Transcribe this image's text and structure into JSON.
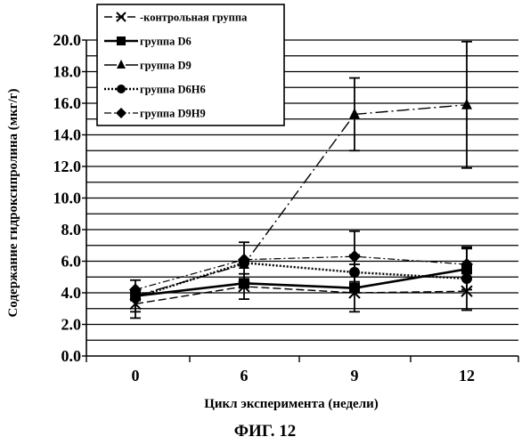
{
  "caption": "ФИГ. 12",
  "chart_data": {
    "type": "line",
    "xlabel": "Цикл эксперимента (недели)",
    "ylabel": "Содержание гидроксипролина (мкг/г)",
    "x": [
      0,
      6,
      9,
      12
    ],
    "x_tick_labels": [
      "0",
      "6",
      "9",
      "12"
    ],
    "ylim": [
      0,
      20
    ],
    "y_ticks": [
      0,
      2,
      4,
      6,
      8,
      10,
      12,
      14,
      16,
      18,
      20
    ],
    "y_tick_labels": [
      "0.0",
      "2.0",
      "4.0",
      "6.0",
      "8.0",
      "10.0",
      "12.0",
      "14.0",
      "16.0",
      "18.0",
      "20.0"
    ],
    "grid": true,
    "legend_position": "top-left",
    "series": [
      {
        "name": "-контрольная группа",
        "marker": "x",
        "line_style": "dashed",
        "values": [
          3.3,
          4.4,
          4.0,
          4.1
        ],
        "error": [
          0.9,
          0.8,
          0.0,
          0.0
        ]
      },
      {
        "name": "группа D6",
        "marker": "square",
        "line_style": "solid",
        "values": [
          3.8,
          4.6,
          4.3,
          5.5
        ],
        "error": [
          1.0,
          0.0,
          1.5,
          1.3
        ]
      },
      {
        "name": "группа D9",
        "marker": "triangle",
        "line_style": "dash-dot",
        "values": [
          3.8,
          5.8,
          15.3,
          15.9
        ],
        "error": [
          0.0,
          1.4,
          2.3,
          4.0
        ]
      },
      {
        "name": "группа D6H6",
        "marker": "circle",
        "line_style": "dotted",
        "values": [
          3.7,
          5.9,
          5.3,
          4.9
        ],
        "error": [
          0.0,
          0.0,
          1.1,
          2.0
        ]
      },
      {
        "name": "группа D9H9",
        "marker": "diamond",
        "line_style": "dash-dot-fine",
        "values": [
          4.2,
          6.1,
          6.3,
          5.8
        ],
        "error": [
          0.0,
          0.0,
          1.6,
          0.0
        ]
      }
    ]
  }
}
